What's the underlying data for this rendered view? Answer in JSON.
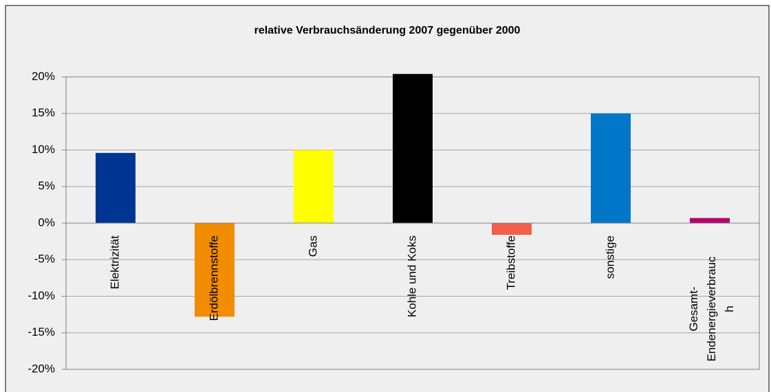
{
  "chart_data": {
    "type": "bar",
    "title": "relative Verbrauchsänderung 2007 gegenüber 2000",
    "categories": [
      "Elektrizität",
      "Erdölbrennstoffe",
      "Gas",
      "Kohle und Koks",
      "Treibstoffe",
      "sonstige",
      "Gesamt-Endenergieverbrauch"
    ],
    "values": [
      9.6,
      -12.8,
      10.0,
      20.4,
      -1.6,
      15.0,
      0.7
    ],
    "colors": [
      "#003594",
      "#f28c00",
      "#ffff00",
      "#000000",
      "#f25f4c",
      "#0077c8",
      "#b5006e"
    ],
    "ylim": [
      -20,
      20
    ],
    "yticks": [
      {
        "value": -20,
        "label": "-20%"
      },
      {
        "value": -15,
        "label": "-15%"
      },
      {
        "value": -10,
        "label": "-10%"
      },
      {
        "value": -5,
        "label": "-5%"
      },
      {
        "value": 0,
        "label": "0%"
      },
      {
        "value": 5,
        "label": "5%"
      },
      {
        "value": 10,
        "label": "10%"
      },
      {
        "value": 15,
        "label": "15%"
      },
      {
        "value": 20,
        "label": "20%"
      }
    ],
    "grid": true
  }
}
